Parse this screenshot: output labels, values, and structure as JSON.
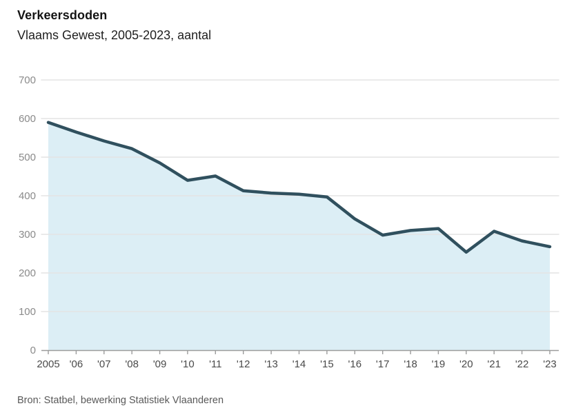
{
  "header": {
    "title": "Verkeersdoden",
    "subtitle": "Vlaams Gewest, 2005-2023, aantal"
  },
  "footer": {
    "source": "Bron: Statbel, bewerking Statistiek Vlaanderen"
  },
  "chart_data": {
    "type": "area",
    "title": "Verkeersdoden",
    "subtitle": "Vlaams Gewest, 2005-2023, aantal",
    "categories": [
      "2005",
      "'06",
      "'07",
      "'08",
      "'09",
      "'10",
      "'11",
      "'12",
      "'13",
      "'14",
      "'15",
      "'16",
      "'17",
      "'18",
      "'19",
      "'20",
      "'21",
      "'22",
      "'23"
    ],
    "values": [
      590,
      565,
      542,
      522,
      485,
      440,
      451,
      413,
      407,
      404,
      397,
      340,
      298,
      310,
      315,
      254,
      308,
      283,
      268
    ],
    "xlabel": "",
    "ylabel": "",
    "ylim": [
      0,
      700
    ],
    "yticks": [
      0,
      100,
      200,
      300,
      400,
      500,
      600,
      700
    ],
    "grid": true,
    "legend": "none",
    "colors": {
      "line": "#30505e",
      "fill": "#dceef5",
      "gridline": "#e3e3e3",
      "axis": "#9b9b9b",
      "y_tick_label": "#8a8a8a",
      "x_tick_label": "#4a4a4a"
    }
  }
}
